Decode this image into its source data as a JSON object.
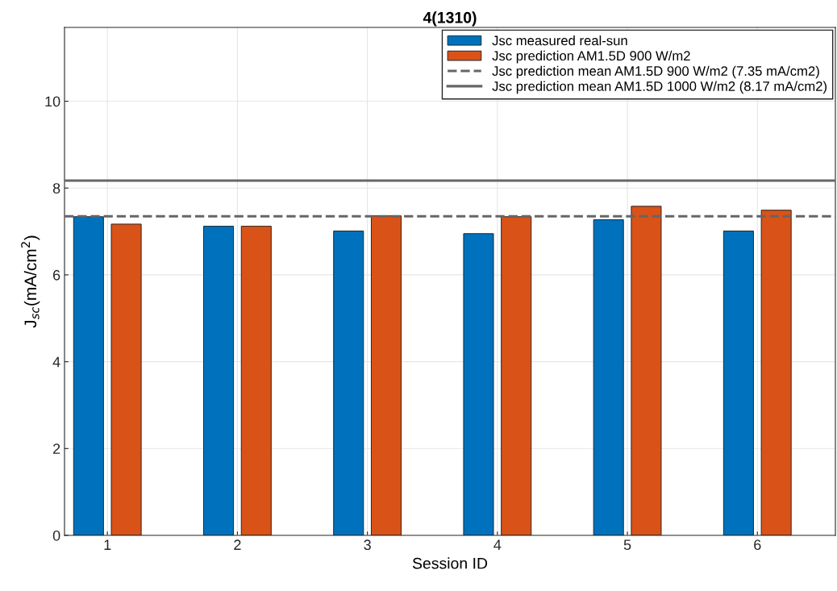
{
  "chart_data": {
    "type": "bar",
    "title": "4(1310)",
    "xlabel": "Session ID",
    "ylabel": "J$_{sc}$(mA/cm$^{2}$)",
    "categories": [
      "1",
      "2",
      "3",
      "4",
      "5",
      "6"
    ],
    "series": [
      {
        "name": "Jsc measured real-sun",
        "color": "#0072bd",
        "values": [
          7.34,
          7.12,
          7.01,
          6.95,
          7.27,
          7.01
        ]
      },
      {
        "name": "Jsc prediction AM1.5D 900 W/m2",
        "color": "#d95319",
        "values": [
          7.17,
          7.12,
          7.36,
          7.34,
          7.58,
          7.49
        ]
      }
    ],
    "ref_lines": [
      {
        "axis": "y",
        "value": 7.35,
        "label": "Jsc prediction mean AM1.5D 900 W/m2 (7.35 mA/cm2)",
        "color": "#666666",
        "line_style": "dashed"
      },
      {
        "axis": "y",
        "value": 8.17,
        "label": "Jsc prediction mean AM1.5D 1000 W/m2 (8.17 mA/cm2)",
        "color": "#666666",
        "line_style": "solid"
      }
    ],
    "ylim": [
      0,
      11.7
    ],
    "yticks": [
      0,
      2,
      4,
      6,
      8,
      10
    ],
    "grid": true,
    "legend": "top right"
  }
}
